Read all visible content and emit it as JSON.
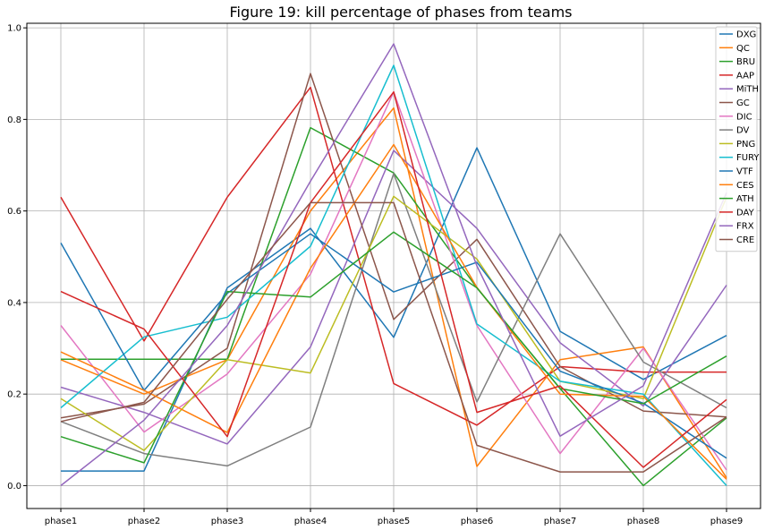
{
  "chart_data": {
    "type": "line",
    "title": "Figure 19: kill percentage of phases from teams",
    "xlabel": "",
    "ylabel": "",
    "categories": [
      "phase1",
      "phase2",
      "phase3",
      "phase4",
      "phase5",
      "phase6",
      "phase7",
      "phase8",
      "phase9"
    ],
    "ylim": [
      -0.05,
      1.01
    ],
    "yticks": [
      0.0,
      0.2,
      0.4,
      0.6,
      0.8,
      1.0
    ],
    "ytick_labels": [
      "0.0",
      "0.2",
      "0.4",
      "0.6",
      "0.8",
      "1.0"
    ],
    "grid": true,
    "legend_position": "top-right",
    "series": [
      {
        "name": "DXG",
        "color": "#1f77b4",
        "values": [
          0.032,
          0.032,
          0.432,
          0.562,
          0.324,
          0.738,
          0.337,
          0.232,
          0.328
        ]
      },
      {
        "name": "QC",
        "color": "#ff7f0e",
        "values": [
          0.275,
          0.2,
          0.275,
          0.6,
          0.825,
          0.042,
          0.275,
          0.303,
          0.017
        ]
      },
      {
        "name": "BRU",
        "color": "#2ca02c",
        "values": [
          0.276,
          0.276,
          0.276,
          0.782,
          0.683,
          0.432,
          0.212,
          0.0,
          0.148
        ]
      },
      {
        "name": "AAP",
        "color": "#d62728",
        "values": [
          0.63,
          0.316,
          0.63,
          0.87,
          0.223,
          0.132,
          0.26,
          0.248,
          0.248
        ]
      },
      {
        "name": "MiTH",
        "color": "#9467bd",
        "values": [
          0.215,
          0.16,
          0.091,
          0.303,
          0.732,
          0.562,
          0.312,
          0.174,
          0.438
        ]
      },
      {
        "name": "GC",
        "color": "#8c564b",
        "values": [
          0.148,
          0.178,
          0.3,
          0.9,
          0.363,
          0.538,
          0.26,
          0.163,
          0.15
        ]
      },
      {
        "name": "DIC",
        "color": "#e377c2",
        "values": [
          0.35,
          0.117,
          0.244,
          0.462,
          0.86,
          0.35,
          0.07,
          0.3,
          0.034
        ]
      },
      {
        "name": "DV",
        "color": "#7f7f7f",
        "values": [
          0.14,
          0.07,
          0.043,
          0.128,
          0.682,
          0.183,
          0.55,
          0.27,
          0.17
        ]
      },
      {
        "name": "PNG",
        "color": "#bcbd22",
        "values": [
          0.19,
          0.077,
          0.275,
          0.246,
          0.632,
          0.495,
          0.228,
          0.19,
          0.63
        ]
      },
      {
        "name": "FURY",
        "color": "#17becf",
        "values": [
          0.17,
          0.325,
          0.368,
          0.523,
          0.918,
          0.353,
          0.228,
          0.2,
          0.0
        ]
      },
      {
        "name": "VTF",
        "color": "#1f77b4",
        "values": [
          0.53,
          0.208,
          0.42,
          0.55,
          0.423,
          0.488,
          0.25,
          0.18,
          0.06
        ]
      },
      {
        "name": "CES",
        "color": "#ff7f0e",
        "values": [
          0.292,
          0.208,
          0.116,
          0.475,
          0.745,
          0.433,
          0.2,
          0.195,
          0.014
        ]
      },
      {
        "name": "ATH",
        "color": "#2ca02c",
        "values": [
          0.107,
          0.05,
          0.424,
          0.412,
          0.554,
          0.432,
          0.212,
          0.179,
          0.283
        ]
      },
      {
        "name": "DAY",
        "color": "#d62728",
        "values": [
          0.424,
          0.342,
          0.107,
          0.618,
          0.86,
          0.16,
          0.218,
          0.04,
          0.188
        ]
      },
      {
        "name": "FRX",
        "color": "#9467bd",
        "values": [
          0.0,
          0.143,
          0.35,
          0.665,
          0.965,
          0.48,
          0.108,
          0.218,
          0.64
        ]
      },
      {
        "name": "CRE",
        "color": "#8c564b",
        "values": [
          0.14,
          0.182,
          0.407,
          0.618,
          0.618,
          0.088,
          0.03,
          0.03,
          0.15
        ]
      }
    ]
  }
}
